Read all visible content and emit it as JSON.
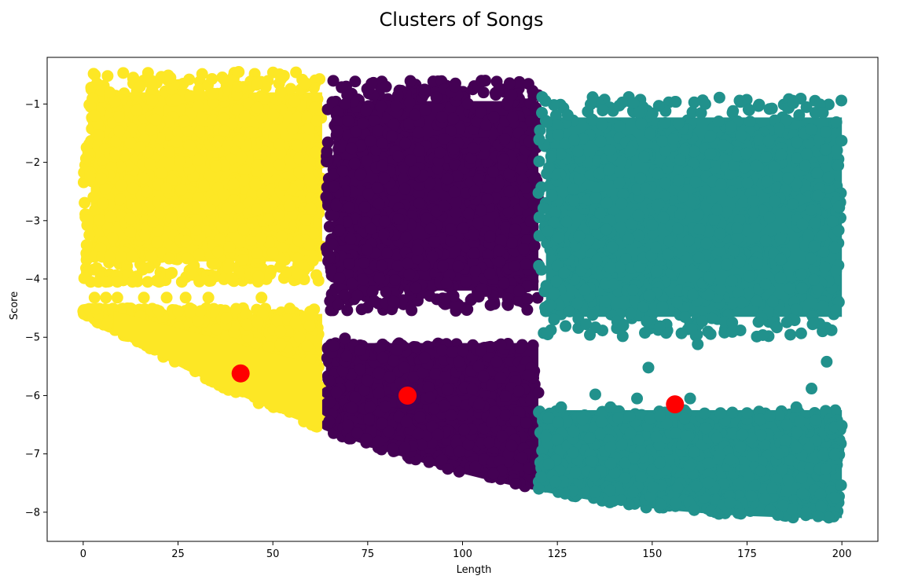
{
  "chart_data": {
    "type": "scatter",
    "title": "Clusters of Songs",
    "xlabel": "Length",
    "ylabel": "Score",
    "xlim": [
      -9.5,
      209.5
    ],
    "ylim": [
      -8.5,
      -0.2
    ],
    "xticks": [
      0,
      25,
      50,
      75,
      100,
      125,
      150,
      175,
      200
    ],
    "yticks": [
      -1,
      -2,
      -3,
      -4,
      -5,
      -6,
      -7,
      -8
    ],
    "xtick_labels": [
      "0",
      "25",
      "50",
      "75",
      "100",
      "125",
      "150",
      "175",
      "200"
    ],
    "ytick_labels": [
      "−1",
      "−2",
      "−3",
      "−4",
      "−5",
      "−6",
      "−7",
      "−8"
    ],
    "grid": false,
    "legend": "none",
    "series": [
      {
        "color": "#fde725",
        "x_range": [
          0,
          63
        ],
        "upper_band": {
          "y_range": [
            -4.05,
            -0.45
          ]
        },
        "lower_band": {
          "y_range": [
            -7.15,
            -4.5
          ]
        },
        "outlier_points": [
          [
            2,
            -1.05
          ],
          [
            3,
            -1.2
          ],
          [
            7,
            -0.8
          ],
          [
            15,
            -0.7
          ],
          [
            23,
            -0.55
          ],
          [
            41,
            -0.45
          ],
          [
            1,
            -3.62
          ],
          [
            3,
            -3.62
          ],
          [
            5,
            -3.62
          ],
          [
            7,
            -3.62
          ],
          [
            10,
            -3.62
          ],
          [
            13,
            -3.62
          ],
          [
            18,
            -3.62
          ],
          [
            2,
            -4.05
          ],
          [
            4,
            -4.05
          ],
          [
            6,
            -4.05
          ],
          [
            9,
            -4.05
          ],
          [
            13,
            -4.05
          ],
          [
            17,
            -4.05
          ],
          [
            20,
            -4.05
          ],
          [
            26,
            -4.05
          ],
          [
            3,
            -4.32
          ],
          [
            6,
            -4.32
          ],
          [
            9,
            -4.32
          ],
          [
            16,
            -4.32
          ],
          [
            22,
            -4.32
          ],
          [
            27,
            -4.32
          ],
          [
            33,
            -4.32
          ],
          [
            47,
            -4.32
          ],
          [
            20,
            -4.55
          ],
          [
            25,
            -4.55
          ],
          [
            31,
            -4.55
          ],
          [
            46,
            -4.75
          ],
          [
            56,
            -4.75
          ],
          [
            52,
            -4.9
          ],
          [
            59,
            -5.15
          ]
        ]
      },
      {
        "color": "#440154",
        "x_range": [
          64,
          120
        ],
        "upper_band": {
          "y_range": [
            -4.55,
            -0.6
          ]
        },
        "lower_band": {
          "y_range": [
            -7.75,
            -5.1
          ]
        },
        "outlier_points": [
          [
            76,
            -0.65
          ],
          [
            106,
            -0.6
          ],
          [
            98,
            -0.7
          ],
          [
            90,
            -0.75
          ],
          [
            83,
            -0.85
          ],
          [
            69,
            -5.02
          ],
          [
            79,
            -5.35
          ],
          [
            90,
            -5.35
          ],
          [
            99,
            -5.42
          ],
          [
            109,
            -5.42
          ],
          [
            66,
            -5.15
          ],
          [
            73,
            -5.55
          ],
          [
            96,
            -5.9
          ],
          [
            110,
            -5.7
          ],
          [
            120,
            -5.95
          ]
        ]
      },
      {
        "color": "#21918c",
        "x_range": [
          120,
          200
        ],
        "upper_band": {
          "y_range": [
            -5.0,
            -0.88
          ]
        },
        "lower_band": {
          "y_range": [
            -8.15,
            -6.25
          ]
        },
        "outlier_points": [
          [
            121,
            -0.88
          ],
          [
            164,
            -1.0
          ],
          [
            145,
            -0.98
          ],
          [
            193,
            -1.15
          ],
          [
            195,
            -1.15
          ],
          [
            162,
            -5.12
          ],
          [
            196,
            -5.42
          ],
          [
            149,
            -5.52
          ],
          [
            192,
            -5.88
          ],
          [
            135,
            -5.98
          ],
          [
            146,
            -6.05
          ],
          [
            160,
            -6.05
          ],
          [
            126,
            -6.2
          ],
          [
            139,
            -6.2
          ],
          [
            152,
            -6.35
          ],
          [
            168,
            -6.3
          ],
          [
            175,
            -6.3
          ],
          [
            188,
            -6.2
          ],
          [
            181,
            -6.35
          ],
          [
            144,
            -6.35
          ]
        ]
      }
    ],
    "centroids": {
      "color": "#ff0000",
      "points": [
        [
          41.5,
          -5.62
        ],
        [
          85.5,
          -6.0
        ],
        [
          156,
          -6.15
        ]
      ]
    }
  }
}
